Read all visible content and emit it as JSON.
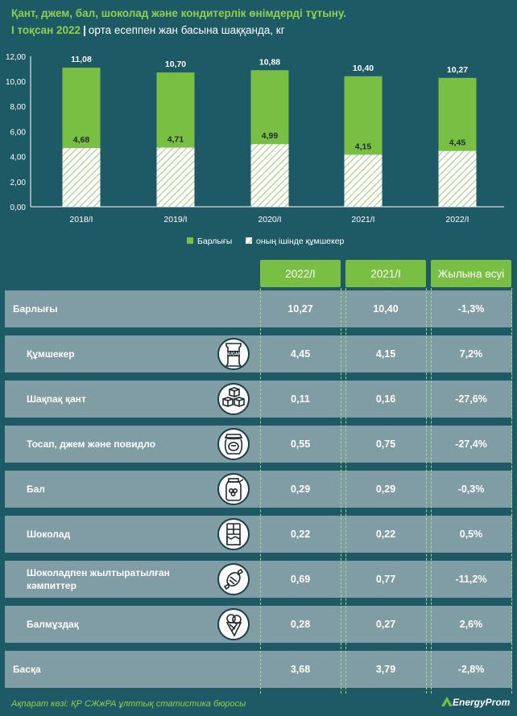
{
  "header": {
    "title": "Қант, джем, бал, шоколад және кондитерлік өнімдерді тұтыну.",
    "period": "I тоқсан 2022",
    "separator": "|",
    "subtitle": "орта есеппен жан басына шаққанда, кг"
  },
  "chart_data": {
    "type": "bar",
    "categories": [
      "2018/I",
      "2019/I",
      "2020/I",
      "2021/I",
      "2022/I"
    ],
    "series": [
      {
        "name": "Барлығы",
        "values": [
          11.08,
          10.7,
          10.88,
          10.4,
          10.27
        ],
        "labels": [
          "11,08",
          "10,70",
          "10,88",
          "10,40",
          "10,27"
        ]
      },
      {
        "name": "оның ішінде құмшекер",
        "values": [
          4.68,
          4.71,
          4.99,
          4.15,
          4.45
        ],
        "labels": [
          "4,68",
          "4,71",
          "4,99",
          "4,15",
          "4,45"
        ]
      }
    ],
    "y_ticks": [
      "0,00",
      "2,00",
      "4,00",
      "6,00",
      "8,00",
      "10,00",
      "12,00"
    ],
    "ylim": [
      0,
      12
    ],
    "grid": false,
    "legend": "bottom",
    "colors": {
      "total": "#79bf43",
      "sugar": "#ffffff"
    }
  },
  "table": {
    "columns": [
      "2022/I",
      "2021/I",
      "Жылына өсуі"
    ],
    "rows": [
      {
        "label": "Барлығы",
        "icon": "",
        "v2022": "10,27",
        "v2021": "10,40",
        "growth": "-1,3%"
      },
      {
        "label": "Құмшекер",
        "icon": "sugar-bag-icon",
        "v2022": "4,45",
        "v2021": "4,15",
        "growth": "7,2%"
      },
      {
        "label": "Шақпақ қант",
        "icon": "sugar-cubes-icon",
        "v2022": "0,11",
        "v2021": "0,16",
        "growth": "-27,6%"
      },
      {
        "label": "Тосап, джем және повидло",
        "icon": "jam-jar-icon",
        "v2022": "0,55",
        "v2021": "0,75",
        "growth": "-27,4%"
      },
      {
        "label": "Бал",
        "icon": "honey-jar-icon",
        "v2022": "0,29",
        "v2021": "0,29",
        "growth": "-0,3%"
      },
      {
        "label": "Шоколад",
        "icon": "chocolate-bar-icon",
        "v2022": "0,22",
        "v2021": "0,22",
        "growth": "0,5%"
      },
      {
        "label": "Шоколадпен жылтыратылған кәмпиттер",
        "icon": "candy-icon",
        "v2022": "0,69",
        "v2021": "0,77",
        "growth": "-11,2%"
      },
      {
        "label": "Балмұздақ",
        "icon": "ice-cream-icon",
        "v2022": "0,28",
        "v2021": "0,27",
        "growth": "2,6%"
      },
      {
        "label": "Басқа",
        "icon": "",
        "v2022": "3,68",
        "v2021": "3,79",
        "growth": "-2,8%"
      }
    ],
    "sugar_icon_text": "SUGAR"
  },
  "footer": {
    "source": "Ақпарат көзі: ҚР СЖжРА ұлттық статистика бюросы",
    "logo": "EnergyProm"
  }
}
